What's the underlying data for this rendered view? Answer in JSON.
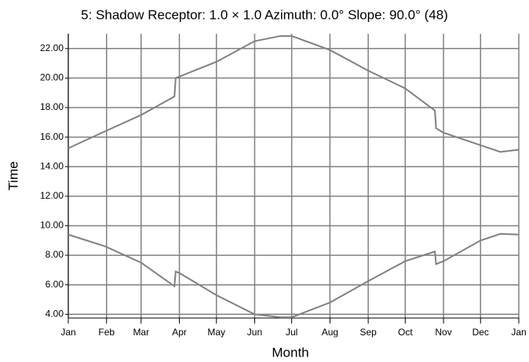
{
  "chart_data": {
    "type": "line",
    "title": "5: Shadow  Receptor: 1.0 × 1.0  Azimuth: 0.0°  Slope: 90.0° (48)",
    "x_label": "Month",
    "y_label": "Time",
    "x": [
      0,
      30,
      59,
      86,
      87,
      90,
      120,
      151,
      172,
      181,
      212,
      243,
      273,
      297,
      298,
      304,
      334,
      350,
      365
    ],
    "series": [
      {
        "color": "#808080",
        "values": [
          15.25,
          16.4,
          17.5,
          18.75,
          20.0,
          20.1,
          21.1,
          22.5,
          22.85,
          22.85,
          21.9,
          20.5,
          19.3,
          17.8,
          16.6,
          16.3,
          15.45,
          15.0,
          15.15
        ]
      },
      {
        "color": "#808080",
        "values": [
          9.4,
          8.6,
          7.5,
          5.9,
          6.9,
          6.8,
          5.3,
          4.0,
          3.8,
          3.8,
          4.8,
          6.25,
          7.6,
          8.25,
          7.4,
          7.6,
          9.0,
          9.45,
          9.4
        ]
      }
    ],
    "xlim": [
      0,
      365
    ],
    "xticks": [
      {
        "value": 0,
        "label": "Jan"
      },
      {
        "value": 31,
        "label": "Feb"
      },
      {
        "value": 59,
        "label": "Mar"
      },
      {
        "value": 90,
        "label": "Apr"
      },
      {
        "value": 120,
        "label": "May"
      },
      {
        "value": 151,
        "label": "Jun"
      },
      {
        "value": 181,
        "label": "Jul"
      },
      {
        "value": 212,
        "label": "Aug"
      },
      {
        "value": 243,
        "label": "Sep"
      },
      {
        "value": 273,
        "label": "Oct"
      },
      {
        "value": 304,
        "label": "Nov"
      },
      {
        "value": 334,
        "label": "Dec"
      },
      {
        "value": 365,
        "label": "Jan"
      }
    ],
    "ylim": [
      3.75,
      23
    ],
    "yticks": [
      {
        "value": 4,
        "label": "4.00"
      },
      {
        "value": 6,
        "label": "6.00"
      },
      {
        "value": 8,
        "label": "8.00"
      },
      {
        "value": 10,
        "label": "10.00"
      },
      {
        "value": 12,
        "label": "12.00"
      },
      {
        "value": 14,
        "label": "14.00"
      },
      {
        "value": 16,
        "label": "16.00"
      },
      {
        "value": 18,
        "label": "18.00"
      },
      {
        "value": 20,
        "label": "20.00"
      },
      {
        "value": 22,
        "label": "22.00"
      }
    ],
    "grid": true
  }
}
